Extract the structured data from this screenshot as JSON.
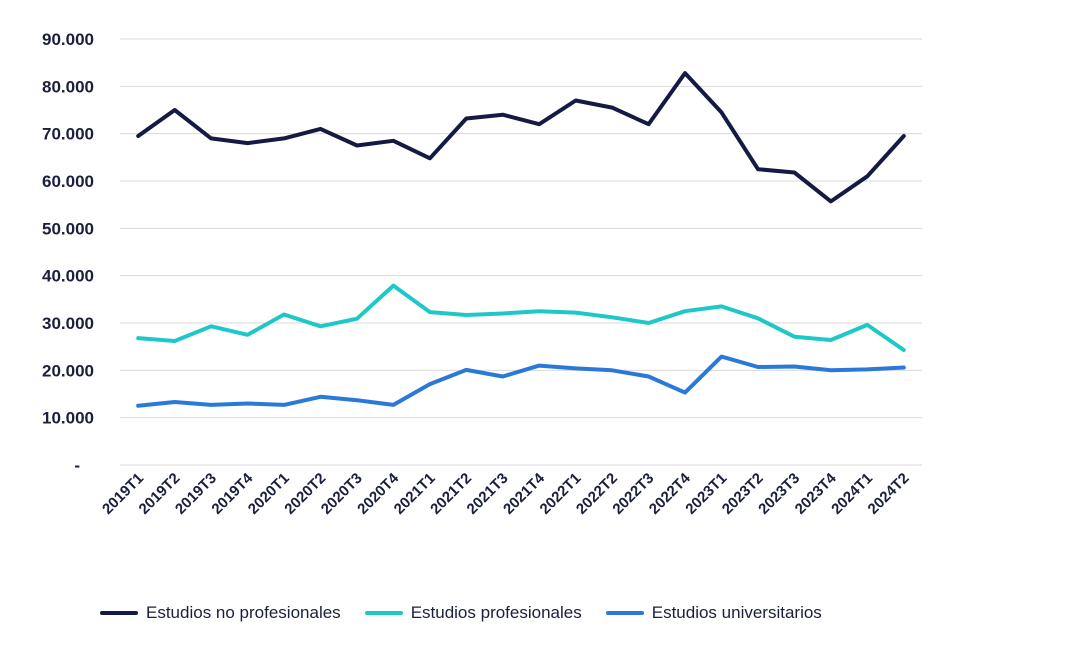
{
  "chart_data": {
    "type": "line",
    "title": "",
    "xlabel": "",
    "ylabel": "",
    "categories": [
      "2019T1",
      "2019T2",
      "2019T3",
      "2019T4",
      "2020T1",
      "2020T2",
      "2020T3",
      "2020T4",
      "2021T1",
      "2021T2",
      "2021T3",
      "2021T4",
      "2022T1",
      "2022T2",
      "2022T3",
      "2022T4",
      "2023T1",
      "2023T2",
      "2023T3",
      "2023T4",
      "2024T1",
      "2024T2"
    ],
    "ylim": [
      0,
      90000
    ],
    "yticks": [
      0,
      10000,
      20000,
      30000,
      40000,
      50000,
      60000,
      70000,
      80000,
      90000
    ],
    "ytick_labels": [
      "-",
      "10.000",
      "20.000",
      "30.000",
      "40.000",
      "50.000",
      "60.000",
      "70.000",
      "80.000",
      "90.000"
    ],
    "grid": "horizontal",
    "legend_position": "bottom",
    "series": [
      {
        "name": "Estudios no profesionales",
        "color": "#141a44",
        "values": [
          69500,
          75000,
          69000,
          68000,
          69000,
          71000,
          67500,
          68500,
          64800,
          73200,
          74000,
          72000,
          77000,
          75500,
          72000,
          82800,
          74500,
          62500,
          61800,
          55700,
          61000,
          69500
        ]
      },
      {
        "name": "Estudios profesionales",
        "color": "#1fc8c8",
        "values": [
          26800,
          26200,
          29300,
          27500,
          31800,
          29300,
          30900,
          37900,
          32300,
          31700,
          32000,
          32500,
          32200,
          31200,
          30000,
          32500,
          33500,
          31000,
          27100,
          26400,
          29600,
          24300
        ]
      },
      {
        "name": "Estudios universitarios",
        "color": "#2a79d8",
        "values": [
          12500,
          13300,
          12700,
          13000,
          12700,
          14400,
          13700,
          12700,
          17100,
          20100,
          18700,
          21000,
          20400,
          20000,
          18700,
          15300,
          22900,
          20700,
          20800,
          20000,
          20200,
          20600
        ]
      }
    ]
  }
}
